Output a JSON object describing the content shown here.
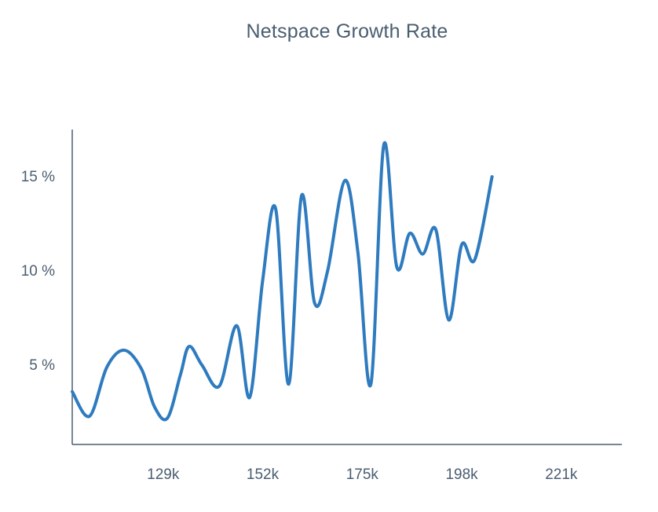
{
  "chart_data": {
    "type": "line",
    "title": "Netspace Growth Rate",
    "xlabel": "",
    "ylabel": "",
    "xlim": [
      108,
      235
    ],
    "ylim": [
      0.8,
      17.5
    ],
    "x_ticks": [
      129,
      152,
      175,
      198,
      221
    ],
    "x_tick_labels": [
      "129k",
      "152k",
      "175k",
      "198k",
      "221k"
    ],
    "y_ticks": [
      5,
      10,
      15
    ],
    "y_tick_labels": [
      "5 %",
      "10 %",
      "15 %"
    ],
    "grid": false,
    "legend": "none",
    "colors": {
      "line": "#2e7bbf",
      "axis": "#4a5d70",
      "text": "#4a5d70"
    },
    "series": [
      {
        "points": [
          [
            108,
            3.6
          ],
          [
            112,
            2.3
          ],
          [
            116,
            4.9
          ],
          [
            120,
            5.8
          ],
          [
            124,
            4.8
          ],
          [
            127,
            2.8
          ],
          [
            130,
            2.2
          ],
          [
            133,
            4.5
          ],
          [
            135,
            6.0
          ],
          [
            138,
            5.0
          ],
          [
            142,
            3.9
          ],
          [
            146,
            7.1
          ],
          [
            149,
            3.3
          ],
          [
            152,
            9.5
          ],
          [
            155,
            13.3
          ],
          [
            158,
            4.0
          ],
          [
            161,
            14.0
          ],
          [
            164,
            8.3
          ],
          [
            167,
            10.0
          ],
          [
            171,
            14.8
          ],
          [
            174,
            11.0
          ],
          [
            177,
            4.0
          ],
          [
            180,
            16.7
          ],
          [
            183,
            10.2
          ],
          [
            186,
            12.0
          ],
          [
            189,
            10.9
          ],
          [
            192,
            12.2
          ],
          [
            195,
            7.4
          ],
          [
            198,
            11.4
          ],
          [
            201,
            10.6
          ],
          [
            205,
            15.0
          ]
        ]
      }
    ]
  }
}
